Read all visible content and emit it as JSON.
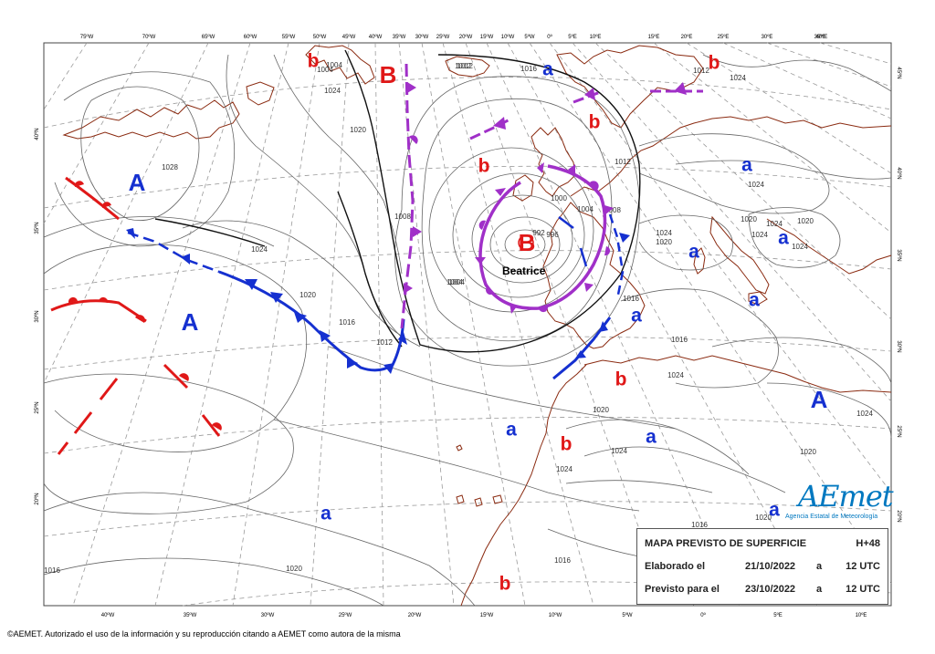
{
  "title_box": {
    "title": "MAPA PREVISTO DE SUPERFICIE",
    "step": "H+48",
    "made_label": "Elaborado el",
    "made_date": "21/10/2022",
    "made_a": "a",
    "made_time": "12 UTC",
    "valid_label": "Previsto para el",
    "valid_date": "23/10/2022",
    "valid_a": "a",
    "valid_time": "12 UTC"
  },
  "logo": {
    "wordmark": "AEmet",
    "subtitle": "Agencia Estatal de Meteorología"
  },
  "footer": "©AEMET. Autorizado el uso de la información y su reproducción citando a AEMET como autora de la misma",
  "storm_name": "Beatrice",
  "top_longitudes": [
    "75ºW",
    "70ºW",
    "65ºW",
    "60ºW",
    "55ºW",
    "50ºW",
    "45ºW",
    "40ºW",
    "35ºW",
    "30ºW",
    "25ºW",
    "20ºW",
    "15ºW",
    "10ºW",
    "5ºW",
    "0º",
    "5ºE",
    "10ºE",
    "15ºE",
    "20ºE",
    "25ºE",
    "30ºE",
    "35ºE",
    "40ºE"
  ],
  "bottom_longitudes": [
    "40ºW",
    "35ºW",
    "30ºW",
    "25ºW",
    "20ºW",
    "15ºW",
    "10ºW",
    "5ºW",
    "0º",
    "5ºE",
    "10ºE"
  ],
  "left_latitudes": [
    "40ºN",
    "35ºN",
    "30ºN",
    "25ºN",
    "20ºN"
  ],
  "right_latitudes": [
    "45ºN",
    "40ºN",
    "35ºN",
    "30ºN",
    "25ºN",
    "20ºN"
  ],
  "pressure_centers": [
    {
      "letter": "A",
      "kind": "high",
      "size": "big"
    },
    {
      "letter": "A",
      "kind": "high",
      "size": "big"
    },
    {
      "letter": "A",
      "kind": "high",
      "size": "big"
    },
    {
      "letter": "a",
      "kind": "high",
      "size": "small"
    },
    {
      "letter": "a",
      "kind": "high",
      "size": "small"
    },
    {
      "letter": "a",
      "kind": "high",
      "size": "small"
    },
    {
      "letter": "a",
      "kind": "high",
      "size": "small"
    },
    {
      "letter": "a",
      "kind": "high",
      "size": "small"
    },
    {
      "letter": "a",
      "kind": "high",
      "size": "small"
    },
    {
      "letter": "a",
      "kind": "high",
      "size": "small"
    },
    {
      "letter": "a",
      "kind": "high",
      "size": "small"
    },
    {
      "letter": "a",
      "kind": "high",
      "size": "small"
    },
    {
      "letter": "a",
      "kind": "high",
      "size": "small"
    },
    {
      "letter": "B",
      "kind": "low",
      "size": "big"
    },
    {
      "letter": "B",
      "kind": "low",
      "size": "big"
    },
    {
      "letter": "b",
      "kind": "low",
      "size": "small"
    },
    {
      "letter": "b",
      "kind": "low",
      "size": "small"
    },
    {
      "letter": "b",
      "kind": "low",
      "size": "small"
    },
    {
      "letter": "b",
      "kind": "low",
      "size": "small"
    },
    {
      "letter": "b",
      "kind": "low",
      "size": "small"
    },
    {
      "letter": "b",
      "kind": "low",
      "size": "small"
    },
    {
      "letter": "b",
      "kind": "low",
      "size": "small"
    }
  ],
  "isobar_labels": [
    "1028",
    "1024",
    "1020",
    "1016",
    "1012",
    "1008",
    "1004",
    "1000",
    "996",
    "992",
    "1004",
    "1012",
    "1016",
    "1024",
    "1020",
    "1008",
    "1012",
    "1016",
    "1024",
    "1020",
    "1016",
    "1020",
    "1024",
    "1024",
    "1020",
    "1024",
    "1016",
    "1020",
    "1024",
    "1020",
    "1024",
    "1024",
    "1024",
    "1020",
    "1016",
    "1016",
    "1020",
    "1024",
    "1024",
    "1004",
    "1004",
    "1004",
    "1012",
    "1012"
  ],
  "colors": {
    "high": "#1530d0",
    "low": "#e01818",
    "cold_front": "#1530d0",
    "warm_front": "#e01818",
    "occluded_front": "#a030c8",
    "coast": "#8a2a10",
    "isobar": "#666666",
    "isobar_bold": "#111111",
    "grid": "#9a9a9a",
    "logo": "#0078c0"
  }
}
